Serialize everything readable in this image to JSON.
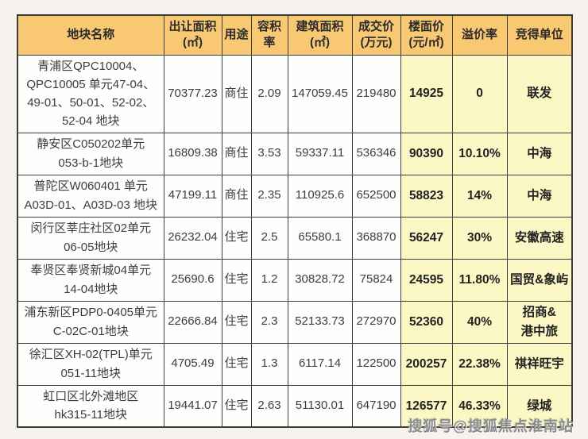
{
  "colors": {
    "page_bg": "#f6f3ef",
    "header_bg": "#f8c873",
    "highlight_bg": "#fbf8c5",
    "cell_bg": "#fefefd",
    "border": "#3c3c3c",
    "watermark": "#8d8d8d"
  },
  "watermark": {
    "text": "搜狐号@搜狐焦点淮南站"
  },
  "chart_data": {
    "type": "table",
    "title": "",
    "columns": [
      {
        "key": "name",
        "label": "地块名称",
        "highlight": false
      },
      {
        "key": "area",
        "label": "出让面积\n(㎡)",
        "highlight": false
      },
      {
        "key": "use",
        "label": "用途",
        "highlight": false
      },
      {
        "key": "far",
        "label": "容积率",
        "highlight": false
      },
      {
        "key": "build",
        "label": "建筑面积\n(㎡)",
        "highlight": false
      },
      {
        "key": "price",
        "label": "成交价\n(万元)",
        "highlight": false
      },
      {
        "key": "floor",
        "label": "楼面价\n(元/㎡)",
        "highlight": true
      },
      {
        "key": "premium",
        "label": "溢价率",
        "highlight": true
      },
      {
        "key": "winner",
        "label": "竞得单位",
        "highlight": true
      }
    ],
    "rows": [
      {
        "name": "青浦区QPC10004、\nQPC10005 单元47-04、\n49-01、50-01、52-02、\n52-04 地块",
        "area": "70377.23",
        "use": "商住",
        "far": "2.09",
        "build": "147059.45",
        "price": "219480",
        "floor": "14925",
        "premium": "0",
        "winner": "联发"
      },
      {
        "name": "静安区C050202单元\n053-b-1地块",
        "area": "16809.38",
        "use": "商住",
        "far": "3.53",
        "build": "59337.11",
        "price": "536346",
        "floor": "90390",
        "premium": "10.10%",
        "winner": "中海"
      },
      {
        "name": "普陀区W060401 单元\nA03D-01、A03D-03 地块",
        "area": "47199.11",
        "use": "商住",
        "far": "2.35",
        "build": "110925.6",
        "price": "652500",
        "floor": "58823",
        "premium": "14%",
        "winner": "中海"
      },
      {
        "name": "闵行区莘庄社区02单元\n06-05地块",
        "area": "26232.04",
        "use": "住宅",
        "far": "2.5",
        "build": "65580.1",
        "price": "368870",
        "floor": "56247",
        "premium": "30%",
        "winner": "安徽高速"
      },
      {
        "name": "奉贤区奉贤新城04单元\n14-04地块",
        "area": "25690.6",
        "use": "住宅",
        "far": "1.2",
        "build": "30828.72",
        "price": "75824",
        "floor": "24595",
        "premium": "11.80%",
        "winner": "国贸&象屿"
      },
      {
        "name": "浦东新区PDP0-0405单元\nC-02C-01地块",
        "area": "22666.84",
        "use": "住宅",
        "far": "2.3",
        "build": "52133.73",
        "price": "272970",
        "floor": "52360",
        "premium": "40%",
        "winner": "招商&\n港中旅"
      },
      {
        "name": "徐汇区XH-02(TPL)单元\n051-11地块",
        "area": "4705.49",
        "use": "住宅",
        "far": "1.3",
        "build": "6117.14",
        "price": "122500",
        "floor": "200257",
        "premium": "22.38%",
        "winner": "祺祥旺宇"
      },
      {
        "name": "虹口区北外滩地区\nhk315-11地块",
        "area": "19441.07",
        "use": "住宅",
        "far": "2.63",
        "build": "51130.01",
        "price": "647190",
        "floor": "126577",
        "premium": "46.33%",
        "winner": "绿城"
      }
    ]
  }
}
